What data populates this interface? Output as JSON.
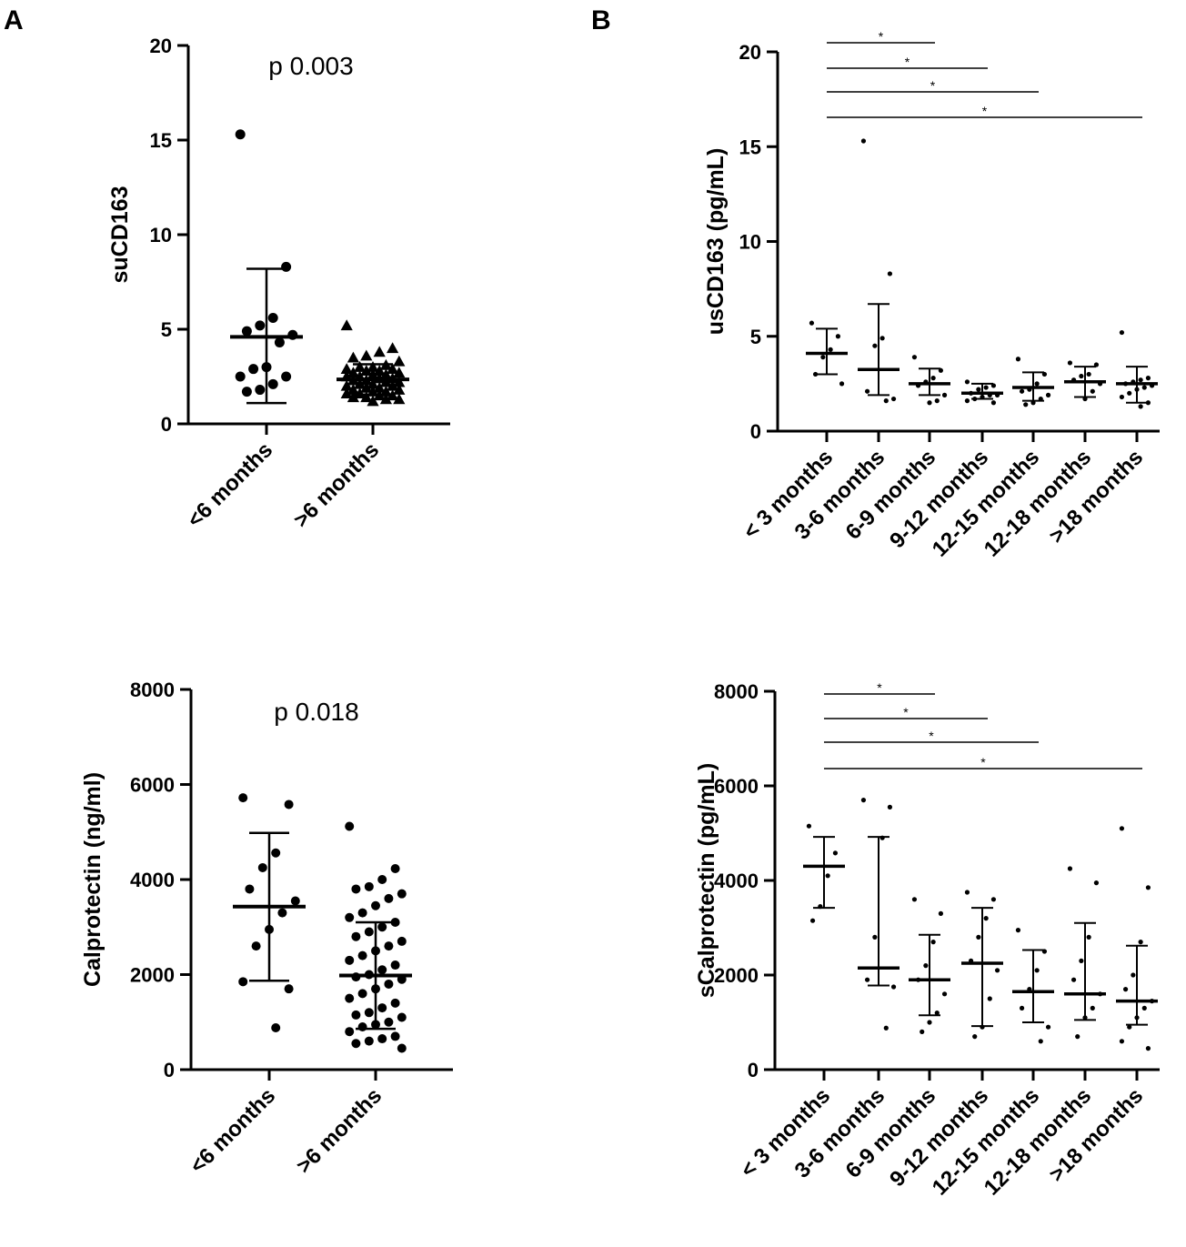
{
  "panel_labels": [
    "A",
    "B"
  ],
  "chart_data": [
    {
      "type": "scatter",
      "panel": "A",
      "ylabel": "suCD163",
      "annotation": "p 0.003",
      "ylim": [
        0,
        20
      ],
      "yticks": [
        "0",
        "5",
        "10",
        "15",
        "20"
      ],
      "categories": [
        "<6 months",
        ">6 months"
      ],
      "markers": [
        "circle",
        "triangle"
      ],
      "groups": [
        {
          "points": [
            15.3,
            8.3,
            5.6,
            5.2,
            4.9,
            4.7,
            4.3,
            3.0,
            2.9,
            2.5,
            2.5,
            2.1,
            1.8,
            1.7
          ],
          "mean": 4.6,
          "upper": 8.2,
          "lower": 1.1
        },
        {
          "points": [
            5.2,
            4.0,
            3.8,
            3.6,
            3.5,
            3.3,
            3.1,
            3.0,
            3.0,
            2.9,
            2.9,
            2.8,
            2.8,
            2.7,
            2.7,
            2.6,
            2.6,
            2.5,
            2.5,
            2.4,
            2.4,
            2.3,
            2.3,
            2.2,
            2.2,
            2.1,
            2.1,
            2.0,
            2.0,
            1.9,
            1.9,
            1.8,
            1.8,
            1.7,
            1.7,
            1.6,
            1.6,
            1.5,
            1.5,
            1.4,
            1.4,
            1.3,
            1.3,
            1.2
          ],
          "mean": 2.35,
          "upper": 3.15,
          "lower": 1.55
        }
      ]
    },
    {
      "type": "scatter",
      "panel": "B",
      "ylabel": "usCD163 (pg/mL)",
      "ylim": [
        0,
        20
      ],
      "yticks": [
        "0",
        "5",
        "10",
        "15",
        "20"
      ],
      "categories": [
        "< 3 months",
        "3-6 months",
        "6-9 months",
        "9-12 months",
        "12-15 months",
        "12-18 months",
        ">18 months"
      ],
      "markers": [
        "circle"
      ],
      "significance": [
        {
          "from": "< 3 months",
          "to": "6-9 months",
          "label": "*"
        },
        {
          "from": "< 3 months",
          "to": "9-12 months",
          "label": "*"
        },
        {
          "from": "< 3 months",
          "to": "12-15 months",
          "label": "*"
        },
        {
          "from": "< 3 months",
          "to": ">18 months",
          "label": "*"
        }
      ],
      "groups": [
        {
          "points": [
            5.7,
            5.0,
            4.3,
            3.9,
            3.0,
            2.5
          ],
          "mean": 4.1,
          "upper": 5.4,
          "lower": 3.0
        },
        {
          "points": [
            15.3,
            8.3,
            4.9,
            4.5,
            2.1,
            1.7,
            1.6
          ],
          "mean": 3.25,
          "upper": 6.7,
          "lower": 1.9
        },
        {
          "points": [
            3.9,
            3.2,
            2.8,
            2.6,
            2.4,
            1.9,
            1.6,
            1.5
          ],
          "mean": 2.5,
          "upper": 3.3,
          "lower": 1.9
        },
        {
          "points": [
            2.6,
            2.4,
            2.3,
            2.2,
            2.0,
            1.9,
            1.9,
            1.8,
            1.7,
            1.6,
            1.5
          ],
          "mean": 2.0,
          "upper": 2.5,
          "lower": 1.7
        },
        {
          "points": [
            3.8,
            3.0,
            2.5,
            2.2,
            2.1,
            1.9,
            1.7,
            1.5,
            1.4
          ],
          "mean": 2.3,
          "upper": 3.1,
          "lower": 1.6
        },
        {
          "points": [
            3.6,
            3.5,
            3.0,
            2.9,
            2.7,
            2.5,
            2.1,
            1.7
          ],
          "mean": 2.6,
          "upper": 3.4,
          "lower": 1.8
        },
        {
          "points": [
            5.2,
            2.8,
            2.7,
            2.6,
            2.5,
            2.4,
            2.3,
            2.2,
            2.0,
            1.8,
            1.5,
            1.3
          ],
          "mean": 2.5,
          "upper": 3.4,
          "lower": 1.5
        }
      ]
    },
    {
      "type": "scatter",
      "panel": "A",
      "ylabel": "Calprotectin (ng/ml)",
      "annotation": "p 0.018",
      "ylim": [
        0,
        8000
      ],
      "yticks": [
        "0",
        "2000",
        "4000",
        "6000",
        "8000"
      ],
      "categories": [
        "<6 months",
        ">6 months"
      ],
      "markers": [
        "circle",
        "circle"
      ],
      "groups": [
        {
          "points": [
            5720,
            5580,
            4560,
            4250,
            3800,
            3550,
            3300,
            2950,
            2600,
            1850,
            1700,
            880
          ],
          "mean": 3430,
          "upper": 4980,
          "lower": 1870
        },
        {
          "points": [
            5120,
            4230,
            4000,
            3850,
            3800,
            3700,
            3600,
            3450,
            3300,
            3200,
            3100,
            3000,
            2900,
            2800,
            2700,
            2600,
            2500,
            2400,
            2300,
            2200,
            2100,
            2000,
            1950,
            1900,
            1800,
            1700,
            1600,
            1500,
            1400,
            1300,
            1200,
            1150,
            1100,
            1000,
            950,
            900,
            800,
            700,
            650,
            600,
            550,
            450
          ],
          "mean": 1980,
          "upper": 3100,
          "lower": 860
        }
      ]
    },
    {
      "type": "scatter",
      "panel": "B",
      "ylabel": "sCalprotectin (pg/mL)",
      "ylim": [
        0,
        8000
      ],
      "yticks": [
        "0",
        "2000",
        "4000",
        "6000",
        "8000"
      ],
      "categories": [
        "< 3 months",
        "3-6 months",
        "6-9 months",
        "9-12 months",
        "12-15 months",
        "12-18 months",
        ">18 months"
      ],
      "markers": [
        "circle"
      ],
      "significance": [
        {
          "from": "< 3 months",
          "to": "6-9 months",
          "label": "*"
        },
        {
          "from": "< 3 months",
          "to": "9-12 months",
          "label": "*"
        },
        {
          "from": "< 3 months",
          "to": "12-15 months",
          "label": "*"
        },
        {
          "from": "< 3 months",
          "to": ">18 months",
          "label": "*"
        }
      ],
      "groups": [
        {
          "points": [
            5150,
            4580,
            4100,
            3450,
            3150
          ],
          "mean": 4300,
          "upper": 4920,
          "lower": 3420
        },
        {
          "points": [
            5700,
            5550,
            4900,
            2800,
            1900,
            1750,
            880
          ],
          "mean": 2150,
          "upper": 4920,
          "lower": 1780
        },
        {
          "points": [
            3600,
            3300,
            2700,
            2200,
            1900,
            1600,
            1200,
            1000,
            800
          ],
          "mean": 1900,
          "upper": 2850,
          "lower": 1150
        },
        {
          "points": [
            3750,
            3600,
            3200,
            2800,
            2300,
            2100,
            1500,
            900,
            700
          ],
          "mean": 2250,
          "upper": 3420,
          "lower": 920
        },
        {
          "points": [
            2950,
            2500,
            2100,
            1700,
            1300,
            900,
            600
          ],
          "mean": 1650,
          "upper": 2530,
          "lower": 1000
        },
        {
          "points": [
            4250,
            3950,
            2800,
            2300,
            1900,
            1600,
            1300,
            1100,
            700
          ],
          "mean": 1600,
          "upper": 3100,
          "lower": 1050
        },
        {
          "points": [
            5100,
            3850,
            2700,
            2000,
            1700,
            1450,
            1300,
            1100,
            900,
            600,
            450
          ],
          "mean": 1450,
          "upper": 2620,
          "lower": 950
        }
      ]
    }
  ]
}
